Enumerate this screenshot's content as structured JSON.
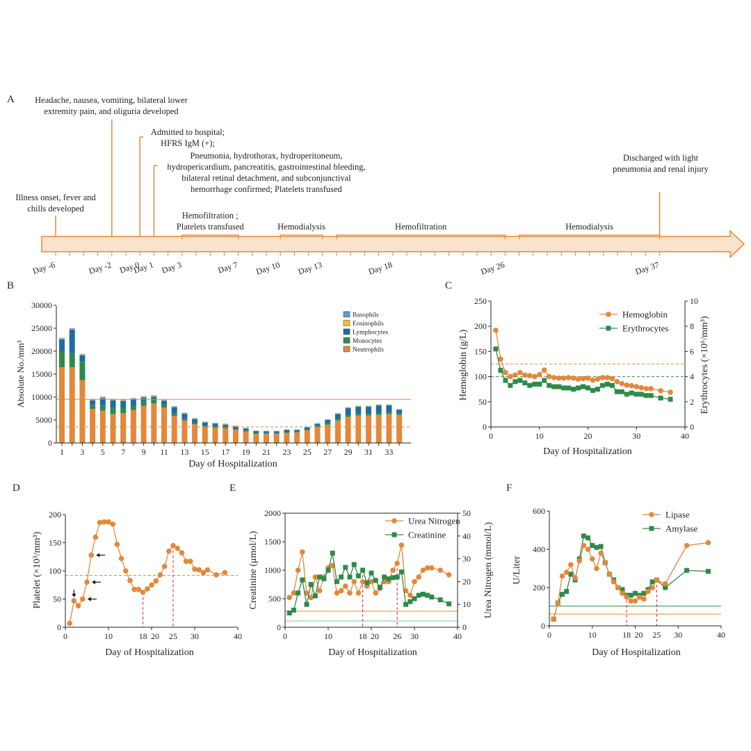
{
  "colors": {
    "orange": "#e3883a",
    "green": "#2e8a4a",
    "blue": "#1f6aa8",
    "light_blue": "#5b9bd5",
    "yellow": "#f2c230",
    "dark_green": "#1d7a58",
    "red": "#e02020",
    "arrow_fill": "#fbe3cc",
    "arrow_stroke": "#e3883a"
  },
  "panel_labels": {
    "a": "A",
    "b": "B",
    "c": "C",
    "d": "D",
    "e": "E",
    "f": "F"
  },
  "timeline": {
    "days": [
      {
        "label": "Day -6",
        "pos": -6
      },
      {
        "label": "Day -2",
        "pos": -2
      },
      {
        "label": "Day 0",
        "pos": 0
      },
      {
        "label": "Day 1",
        "pos": 1
      },
      {
        "label": "Day 3",
        "pos": 3
      },
      {
        "label": "Day 7",
        "pos": 7
      },
      {
        "label": "Day 10",
        "pos": 10
      },
      {
        "label": "Day 13",
        "pos": 13
      },
      {
        "label": "Day 18",
        "pos": 18
      },
      {
        "label": "Day 26",
        "pos": 26
      },
      {
        "label": "Day 37",
        "pos": 37
      }
    ],
    "events": [
      {
        "day": -6,
        "lines": [
          "Illness onset, fever and",
          "chills developed"
        ]
      },
      {
        "day": -2,
        "lines": [
          "Headache, nausea, vomiting, bilateral lower",
          "extremity pain, and oliguria developed"
        ]
      },
      {
        "day": 0,
        "lines": [
          "Admitted to hospital;",
          "HFRS IgM (+);"
        ]
      },
      {
        "day": 1,
        "lines": [
          "Pneumonia, hydrothorax, hydroperitoneum,",
          "hydropericardium, pancreatitis, gastrointestinal bleeding,",
          "bilateral retinal detachment, and subconjunctival",
          "hemorrhage  confirmed; Platelets transfused"
        ]
      },
      {
        "day": 37,
        "lines": [
          "Discharged with light",
          "pneumonia and renal injury"
        ]
      }
    ],
    "treatments": [
      {
        "start": 3,
        "end": 7,
        "lines": [
          "Hemofiltration ;",
          "Platelets transfused"
        ]
      },
      {
        "start": 10,
        "end": 13,
        "lines": [
          "Hemodialysis"
        ]
      },
      {
        "start": 14,
        "end": 26,
        "lines": [
          "Hemofiltration"
        ]
      },
      {
        "start": 27,
        "end": 37,
        "lines": [
          "Hemodialysis"
        ]
      }
    ]
  },
  "chart_data": [
    {
      "id": "B",
      "type": "bar",
      "stacked": true,
      "xlabel": "Day of Hospitalization",
      "ylabel": "Absolute No./mm³",
      "ylim": [
        0,
        30000
      ],
      "yticks": [
        0,
        5000,
        10000,
        15000,
        20000,
        25000,
        30000
      ],
      "xtick_labels": [
        "1",
        "3",
        "5",
        "7",
        "9",
        "11",
        "13",
        "15",
        "17",
        "19",
        "21",
        "23",
        "25",
        "27",
        "29",
        "31",
        "33"
      ],
      "categories": [
        1,
        2,
        3,
        4,
        5,
        6,
        7,
        8,
        9,
        10,
        11,
        12,
        13,
        14,
        15,
        16,
        17,
        18,
        19,
        20,
        21,
        22,
        23,
        24,
        25,
        26,
        27,
        28,
        29,
        30,
        31,
        32,
        33,
        34
      ],
      "series": [
        {
          "name": "Neutrophils",
          "color": "#e3883a",
          "values": [
            16500,
            16500,
            13700,
            7400,
            7000,
            6300,
            6500,
            7200,
            8100,
            8600,
            7700,
            5900,
            4900,
            4100,
            3500,
            3300,
            3200,
            2900,
            2500,
            2000,
            2000,
            2000,
            2200,
            2300,
            2800,
            3500,
            4000,
            4900,
            5700,
            6000,
            6000,
            6100,
            6300,
            6100
          ]
        },
        {
          "name": "Monocytes",
          "color": "#2e8a4a",
          "values": [
            3500,
            3000,
            4000,
            900,
            1200,
            1300,
            1100,
            900,
            900,
            800,
            700,
            600,
            500,
            300,
            250,
            250,
            250,
            200,
            200,
            200,
            150,
            150,
            150,
            150,
            150,
            200,
            300,
            300,
            300,
            400,
            400,
            400,
            400,
            300
          ]
        },
        {
          "name": "Lymphocytes",
          "color": "#1f6aa8",
          "values": [
            2600,
            5200,
            1400,
            1000,
            1600,
            1700,
            1600,
            1400,
            900,
            700,
            800,
            1300,
            1000,
            800,
            700,
            650,
            550,
            450,
            450,
            400,
            400,
            400,
            500,
            400,
            450,
            500,
            750,
            1100,
            1600,
            1500,
            1500,
            1700,
            1500,
            800
          ]
        },
        {
          "name": "Eosinophils",
          "color": "#f2c230",
          "values": [
            150,
            150,
            150,
            100,
            150,
            150,
            150,
            150,
            150,
            150,
            100,
            100,
            100,
            100,
            100,
            100,
            100,
            100,
            50,
            50,
            50,
            50,
            50,
            50,
            50,
            50,
            50,
            100,
            100,
            100,
            100,
            100,
            100,
            100
          ]
        },
        {
          "name": "Basophils",
          "color": "#5b9bd5",
          "values": [
            150,
            150,
            150,
            100,
            150,
            150,
            150,
            150,
            150,
            150,
            100,
            100,
            100,
            100,
            100,
            100,
            100,
            100,
            100,
            50,
            50,
            50,
            50,
            50,
            50,
            50,
            50,
            100,
            100,
            100,
            100,
            100,
            100,
            100
          ]
        }
      ],
      "legend": [
        "Basophils",
        "Eosinophils",
        "Lymphocytes",
        "Monocytes",
        "Neutrophils"
      ],
      "ref_lines": [
        {
          "value": 9500,
          "style": "solid"
        },
        {
          "value": 3500,
          "style": "dashed"
        }
      ]
    },
    {
      "id": "C",
      "type": "line",
      "xlabel": "Day of Hospitalization",
      "ylabel": "Hemoglobin (g/L)",
      "ylabel_right": "Erythrocytes (×10⁶/mm³)",
      "xlim": [
        0,
        40
      ],
      "xticks": [
        0,
        10,
        20,
        30,
        40
      ],
      "ylim": [
        0,
        250
      ],
      "yticks": [
        0,
        50,
        100,
        150,
        200,
        250
      ],
      "ylim_right": [
        0,
        10
      ],
      "yticks_right": [
        0,
        2,
        4,
        6,
        8,
        10
      ],
      "series": [
        {
          "name": "Hemoglobin",
          "axis": "left",
          "marker": "circle",
          "color": "#e3883a",
          "x": [
            1,
            2,
            3,
            4,
            5,
            6,
            7,
            8,
            9,
            10,
            11,
            12,
            13,
            14,
            15,
            16,
            17,
            18,
            19,
            20,
            21,
            22,
            23,
            24,
            25,
            26,
            27,
            28,
            29,
            30,
            31,
            32,
            33,
            35,
            37
          ],
          "y": [
            192,
            135,
            108,
            100,
            103,
            108,
            103,
            102,
            100,
            104,
            113,
            100,
            98,
            97,
            97,
            98,
            97,
            95,
            96,
            97,
            93,
            95,
            98,
            98,
            96,
            90,
            86,
            83,
            82,
            80,
            78,
            76,
            76,
            72,
            69
          ]
        },
        {
          "name": "Erythrocytes",
          "axis": "right",
          "marker": "square",
          "color": "#2e8a4a",
          "x": [
            1,
            2,
            3,
            4,
            5,
            6,
            7,
            8,
            9,
            10,
            11,
            12,
            13,
            14,
            15,
            16,
            17,
            18,
            19,
            20,
            21,
            22,
            23,
            24,
            25,
            26,
            27,
            28,
            29,
            30,
            31,
            32,
            33,
            35,
            37
          ],
          "y": [
            6.2,
            4.5,
            3.7,
            3.3,
            3.6,
            3.7,
            3.5,
            3.3,
            3.4,
            3.4,
            3.7,
            3.3,
            3.2,
            3.2,
            3.1,
            3.1,
            3.0,
            3.1,
            3.2,
            3.1,
            2.9,
            3.0,
            3.3,
            3.4,
            3.3,
            2.8,
            2.8,
            2.6,
            2.7,
            2.6,
            2.6,
            2.5,
            2.5,
            2.3,
            2.2
          ]
        }
      ],
      "ref_lines": [
        {
          "axis": "left",
          "value": 125,
          "color": "#e3883a"
        },
        {
          "axis": "right",
          "value": 4,
          "color": "#2e8a4a"
        }
      ]
    },
    {
      "id": "D",
      "type": "line",
      "xlabel": "Day of Hospitalization",
      "ylabel": "Platelet (×10³/mm³)",
      "xlim": [
        0,
        40
      ],
      "xticks": [
        0,
        10,
        20,
        30,
        40
      ],
      "ylim": [
        0,
        200
      ],
      "yticks": [
        0,
        50,
        100,
        150,
        200
      ],
      "series": [
        {
          "name": "Platelet",
          "marker": "circle",
          "color": "#e3883a",
          "x": [
            1,
            2,
            3,
            4,
            5,
            6,
            7,
            8,
            9,
            10,
            11,
            12,
            13,
            14,
            15,
            16,
            17,
            18,
            19,
            20,
            21,
            22,
            23,
            24,
            25,
            26,
            27,
            28,
            29,
            30,
            31,
            32,
            33,
            35,
            37
          ],
          "y": [
            7,
            47,
            38,
            50,
            80,
            128,
            160,
            186,
            187,
            187,
            183,
            147,
            122,
            100,
            83,
            67,
            67,
            62,
            68,
            75,
            82,
            93,
            108,
            135,
            145,
            140,
            132,
            117,
            117,
            103,
            102,
            97,
            102,
            93,
            97
          ]
        }
      ],
      "ref_lines": [
        {
          "value": 92,
          "color": "#e3883a",
          "style": "dashed"
        }
      ],
      "marked_days": [
        {
          "day": 18,
          "label": "18"
        },
        {
          "day": 25,
          "label": "25"
        }
      ],
      "annotation_arrows": [
        {
          "x": 2,
          "y": 47,
          "dir": "down"
        },
        {
          "x": 4,
          "y": 50,
          "dir": "left"
        },
        {
          "x": 5,
          "y": 80,
          "dir": "left"
        },
        {
          "x": 6,
          "y": 128,
          "dir": "left"
        }
      ]
    },
    {
      "id": "E",
      "type": "line",
      "xlabel": "Day of Hospitalization",
      "ylabel": "Creatinine (μmol/L)",
      "ylabel_right": "Urea Nitrogen (mmol/L)",
      "xlim": [
        0,
        40
      ],
      "xticks": [
        0,
        10,
        20,
        30,
        40
      ],
      "ylim": [
        0,
        2000
      ],
      "yticks": [
        0,
        500,
        1000,
        1500,
        2000
      ],
      "ylim_right": [
        0,
        50
      ],
      "yticks_right": [
        0,
        10,
        20,
        30,
        40,
        50
      ],
      "series": [
        {
          "name": "Urea Nitrogen",
          "axis": "right",
          "marker": "circle",
          "color": "#e3883a",
          "x": [
            1,
            2,
            3,
            4,
            5,
            6,
            7,
            8,
            9,
            10,
            11,
            12,
            13,
            14,
            15,
            16,
            17,
            18,
            19,
            20,
            21,
            22,
            23,
            24,
            25,
            26,
            27,
            28,
            29,
            30,
            31,
            32,
            33,
            34,
            36,
            38
          ],
          "y": [
            13,
            15,
            25,
            33,
            15,
            13,
            22,
            16,
            22,
            26,
            27,
            15,
            16,
            18,
            15,
            20,
            15,
            20,
            18,
            20,
            15,
            17,
            20,
            20,
            25,
            28,
            36,
            16,
            14,
            20,
            22,
            25,
            26,
            26,
            25,
            23
          ]
        },
        {
          "name": "Creatinine",
          "axis": "left",
          "marker": "square",
          "color": "#2e8a4a",
          "x": [
            1,
            2,
            3,
            4,
            5,
            6,
            7,
            8,
            9,
            10,
            11,
            12,
            13,
            14,
            15,
            16,
            17,
            18,
            19,
            20,
            21,
            22,
            23,
            24,
            25,
            26,
            27,
            28,
            29,
            30,
            31,
            32,
            33,
            34,
            36,
            38
          ],
          "y": [
            250,
            300,
            600,
            830,
            400,
            750,
            550,
            880,
            850,
            1000,
            1300,
            800,
            880,
            1050,
            880,
            1100,
            900,
            1000,
            780,
            950,
            820,
            700,
            880,
            850,
            870,
            880,
            970,
            400,
            450,
            500,
            560,
            580,
            560,
            530,
            480,
            410
          ]
        }
      ],
      "ref_lines": [
        {
          "axis": "right",
          "value": 7,
          "color": "#e3883a"
        },
        {
          "axis": "left",
          "value": 110,
          "color": "#7cc79a"
        }
      ],
      "marked_days": [
        {
          "day": 18,
          "label": "18"
        },
        {
          "day": 26,
          "label": "26"
        }
      ]
    },
    {
      "id": "F",
      "type": "line",
      "xlabel": "Day of Hospitalization",
      "ylabel": "U/Liter",
      "xlim": [
        0,
        40
      ],
      "xticks": [
        0,
        10,
        20,
        30,
        40
      ],
      "ylim": [
        0,
        600
      ],
      "yticks": [
        0,
        200,
        400,
        600
      ],
      "series": [
        {
          "name": "Lipase",
          "marker": "circle",
          "color": "#e3883a",
          "x": [
            1,
            2,
            3,
            4,
            5,
            6,
            7,
            8,
            9,
            10,
            11,
            12,
            13,
            14,
            15,
            16,
            17,
            18,
            19,
            20,
            21,
            22,
            23,
            24,
            25,
            27,
            32,
            37
          ],
          "y": [
            35,
            120,
            260,
            280,
            320,
            250,
            340,
            420,
            400,
            350,
            300,
            380,
            330,
            270,
            230,
            200,
            170,
            150,
            130,
            130,
            150,
            140,
            180,
            200,
            240,
            220,
            420,
            435
          ]
        },
        {
          "name": "Amylase",
          "marker": "square",
          "color": "#2e8a4a",
          "x": [
            1,
            2,
            3,
            4,
            5,
            6,
            7,
            8,
            9,
            10,
            11,
            12,
            13,
            14,
            15,
            16,
            17,
            18,
            19,
            20,
            21,
            22,
            23,
            24,
            25,
            27,
            32,
            37
          ],
          "y": [
            35,
            120,
            165,
            180,
            270,
            240,
            350,
            470,
            460,
            420,
            410,
            415,
            330,
            270,
            240,
            200,
            190,
            160,
            160,
            170,
            160,
            170,
            190,
            230,
            240,
            200,
            290,
            285
          ]
        }
      ],
      "ref_lines": [
        {
          "value": 103,
          "color": "#2e8a4a"
        },
        {
          "value": 62,
          "color": "#e3883a"
        }
      ],
      "marked_days": [
        {
          "day": 18,
          "label": "18"
        },
        {
          "day": 25,
          "label": "25"
        }
      ]
    }
  ]
}
